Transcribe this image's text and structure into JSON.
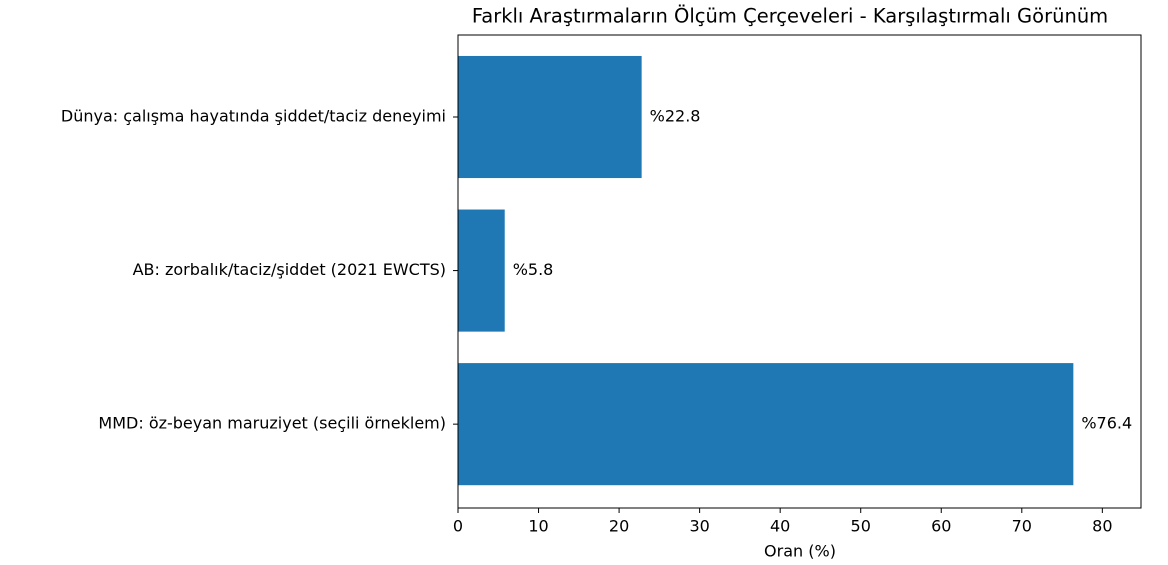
{
  "chart_data": {
    "type": "barh",
    "title": "Farklı Araştırmaların Ölçüm Çerçeveleri - Karşılaştırmalı Görünüm",
    "xlabel": "Oran (%)",
    "categories": [
      "Dünya: çalışma hayatında şiddet/taciz deneyimi",
      "AB: zorbalık/taciz/şiddet (2021 EWCTS)",
      "MMD: öz-beyan maruziyet (seçili örneklem)"
    ],
    "values": [
      22.8,
      5.8,
      76.4
    ],
    "value_labels": [
      "%22.8",
      "%5.8",
      "%76.4"
    ],
    "color": "#1f77b4",
    "xlim": [
      0,
      84.8
    ],
    "xticks": [
      0,
      10,
      20,
      30,
      40,
      50,
      60,
      70,
      80
    ]
  }
}
